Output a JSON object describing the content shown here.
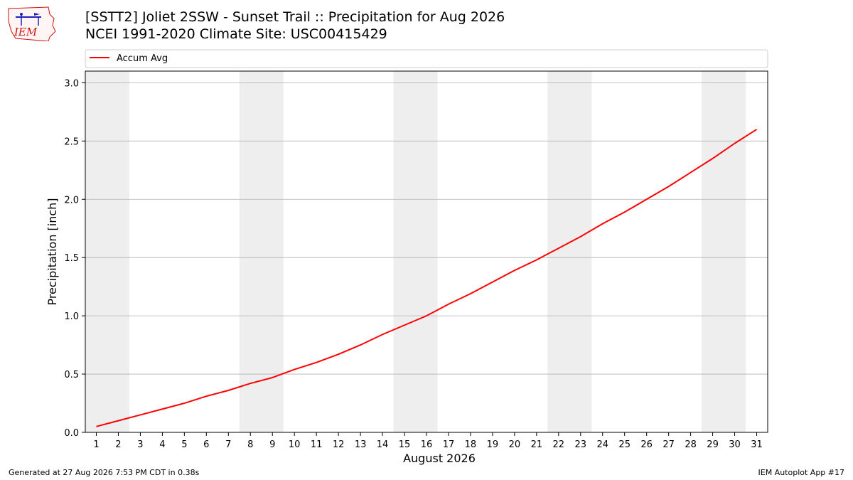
{
  "header": {
    "title_line1": "[SSTT2] Joliet 2SSW - Sunset Trail :: Precipitation for Aug 2026",
    "title_line2": "NCEI 1991-2020 Climate Site: USC00415429",
    "logo_text": "IEM"
  },
  "footer": {
    "generated": "Generated at 27 Aug 2026 7:53 PM CDT in 0.38s",
    "app": "IEM Autoplot App #17"
  },
  "colors": {
    "series": "#ff0000",
    "weekend_band": "#eeeeee",
    "grid": "#b0b0b0"
  },
  "chart_data": {
    "type": "line",
    "title": "[SSTT2] Joliet 2SSW - Sunset Trail :: Precipitation for Aug 2026",
    "subtitle": "NCEI 1991-2020 Climate Site: USC00415429",
    "xlabel": "August 2026",
    "ylabel": "Precipitation [inch]",
    "xlim": [
      0.5,
      31.5
    ],
    "ylim": [
      0,
      3.1
    ],
    "xticks": [
      1,
      2,
      3,
      4,
      5,
      6,
      7,
      8,
      9,
      10,
      11,
      12,
      13,
      14,
      15,
      16,
      17,
      18,
      19,
      20,
      21,
      22,
      23,
      24,
      25,
      26,
      27,
      28,
      29,
      30,
      31
    ],
    "yticks": [
      0.0,
      0.5,
      1.0,
      1.5,
      2.0,
      2.5,
      3.0
    ],
    "ytick_labels": [
      "0.0",
      "0.5",
      "1.0",
      "1.5",
      "2.0",
      "2.5",
      "3.0"
    ],
    "grid": "horizontal",
    "legend_position": "top",
    "weekend_bands": [
      [
        0.5,
        2.5
      ],
      [
        7.5,
        9.5
      ],
      [
        14.5,
        16.5
      ],
      [
        21.5,
        23.5
      ],
      [
        28.5,
        30.5
      ]
    ],
    "series": [
      {
        "name": "Accum Avg",
        "x": [
          1,
          2,
          3,
          4,
          5,
          6,
          7,
          8,
          9,
          10,
          11,
          12,
          13,
          14,
          15,
          16,
          17,
          18,
          19,
          20,
          21,
          22,
          23,
          24,
          25,
          26,
          27,
          28,
          29,
          30,
          31
        ],
        "values": [
          0.05,
          0.1,
          0.15,
          0.2,
          0.25,
          0.31,
          0.36,
          0.42,
          0.47,
          0.54,
          0.6,
          0.67,
          0.75,
          0.84,
          0.92,
          1.0,
          1.1,
          1.19,
          1.29,
          1.39,
          1.48,
          1.58,
          1.68,
          1.79,
          1.89,
          2.0,
          2.11,
          2.23,
          2.35,
          2.48,
          2.6
        ]
      }
    ]
  }
}
